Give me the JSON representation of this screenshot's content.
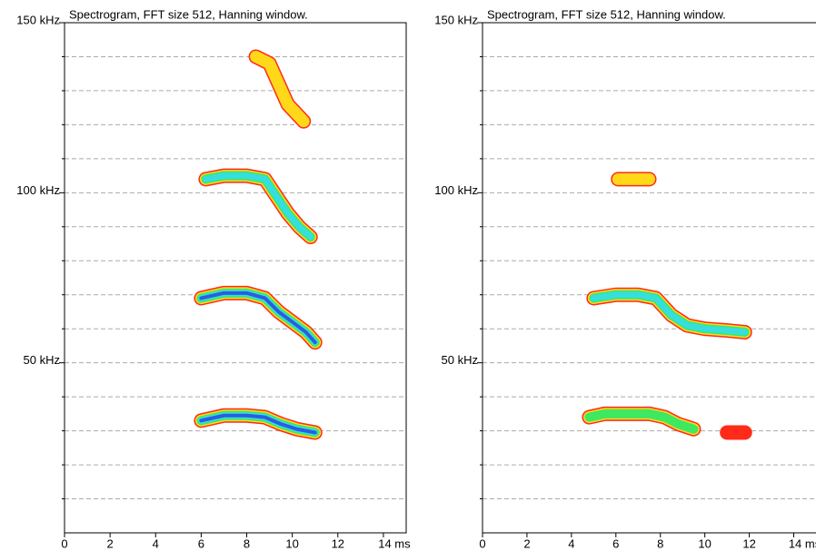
{
  "chart_data": [
    {
      "type": "spectrogram",
      "title": "Spectrogram, FFT size 512, Hanning window.",
      "xlim": [
        0,
        15
      ],
      "xticks": [
        0,
        2,
        4,
        6,
        8,
        10,
        12,
        {
          "value": 14,
          "label": "14 ms"
        }
      ],
      "ylim": [
        0,
        150
      ],
      "yticks": [
        {
          "value": 50,
          "label": "50 kHz"
        },
        {
          "value": 100,
          "label": "100 kHz"
        },
        {
          "value": 150,
          "label": "150 kHz"
        }
      ],
      "minor_yticks": [
        10,
        20,
        30,
        40,
        60,
        70,
        80,
        90,
        110,
        120,
        130,
        140
      ],
      "grid": true,
      "colormap": [
        "#ff2a1a",
        "#ffd81a",
        "#3ee860",
        "#36dede",
        "#2a5ee0"
      ],
      "series": [
        {
          "color": "#ffd81a",
          "x": [
            8.4,
            9,
            9.4,
            9.8,
            10.5
          ],
          "values": [
            140,
            138,
            132,
            126,
            121
          ]
        },
        {
          "color": "#36dede",
          "x": [
            6.2,
            7,
            8,
            8.8,
            9.3,
            9.8,
            10.3,
            10.8
          ],
          "values": [
            104,
            105,
            105,
            104,
            99,
            94,
            90,
            87
          ]
        },
        {
          "color": "#2a5ee0",
          "x": [
            6,
            7,
            8,
            8.8,
            9.4,
            10,
            10.6,
            11
          ],
          "values": [
            69,
            70.5,
            70.5,
            69,
            65,
            62,
            59,
            56
          ]
        },
        {
          "color": "#2a5ee0",
          "x": [
            6,
            7,
            8,
            8.8,
            9.5,
            10.2,
            11
          ],
          "values": [
            33,
            34.5,
            34.5,
            34,
            32,
            30.5,
            29.5
          ]
        }
      ]
    },
    {
      "type": "spectrogram",
      "title": "Spectrogram, FFT size 512, Hanning window.",
      "xlim": [
        0,
        15
      ],
      "xticks": [
        0,
        2,
        4,
        6,
        8,
        10,
        12,
        {
          "value": 14,
          "label": "14 ms"
        }
      ],
      "ylim": [
        0,
        150
      ],
      "yticks": [
        {
          "value": 50,
          "label": "50 kHz"
        },
        {
          "value": 100,
          "label": "100 kHz"
        },
        {
          "value": 150,
          "label": "150 kHz"
        }
      ],
      "minor_yticks": [
        10,
        20,
        30,
        40,
        60,
        70,
        80,
        90,
        110,
        120,
        130,
        140
      ],
      "grid": true,
      "colormap": [
        "#ff2a1a",
        "#ffd81a",
        "#3ee860",
        "#36dede",
        "#2a5ee0"
      ],
      "series": [
        {
          "color": "#ffd81a",
          "x": [
            6.1,
            7.5
          ],
          "values": [
            104,
            104
          ]
        },
        {
          "color": "#36dede",
          "x": [
            5,
            6,
            7,
            7.8,
            8.5,
            9.2,
            10,
            11,
            11.8
          ],
          "values": [
            69,
            70,
            70,
            69,
            64,
            61,
            60,
            59.5,
            59
          ]
        },
        {
          "color": "#3ee860",
          "x": [
            4.8,
            5.5,
            6.5,
            7.5,
            8.2,
            8.8,
            9.5
          ],
          "values": [
            34,
            35,
            35,
            35,
            34,
            32,
            30.5
          ]
        },
        {
          "color": "#ff2a1a",
          "x": [
            11,
            11.8
          ],
          "values": [
            29.5,
            29.5
          ]
        }
      ]
    }
  ]
}
